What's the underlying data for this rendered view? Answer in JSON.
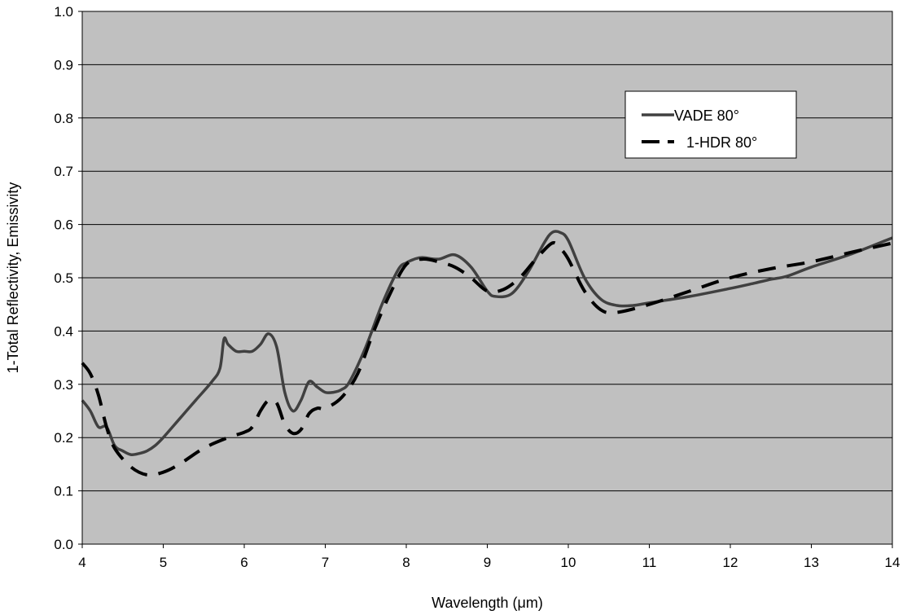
{
  "chart_data": {
    "type": "line",
    "xlabel": "Wavelength (μm)",
    "ylabel": "1-Total Reflectivity, Emissivity",
    "xlim": [
      4,
      14
    ],
    "ylim": [
      0,
      1
    ],
    "x_ticks": [
      "4",
      "5",
      "6",
      "7",
      "8",
      "9",
      "10",
      "11",
      "12",
      "13",
      "14"
    ],
    "y_ticks": [
      "0.0",
      "0.1",
      "0.2",
      "0.3",
      "0.4",
      "0.5",
      "0.6",
      "0.7",
      "0.8",
      "0.9",
      "1.0"
    ],
    "grid": true,
    "legend_position": "top-right",
    "plot_background": "#c0c0c0",
    "series": [
      {
        "name": "VADE 80°",
        "color": "#404040",
        "style": "solid",
        "points": [
          [
            4.0,
            0.27
          ],
          [
            4.1,
            0.25
          ],
          [
            4.2,
            0.22
          ],
          [
            4.3,
            0.22
          ],
          [
            4.4,
            0.185
          ],
          [
            4.5,
            0.175
          ],
          [
            4.6,
            0.168
          ],
          [
            4.7,
            0.17
          ],
          [
            4.8,
            0.175
          ],
          [
            4.9,
            0.185
          ],
          [
            5.0,
            0.2
          ],
          [
            5.2,
            0.235
          ],
          [
            5.4,
            0.27
          ],
          [
            5.6,
            0.305
          ],
          [
            5.7,
            0.33
          ],
          [
            5.75,
            0.385
          ],
          [
            5.8,
            0.375
          ],
          [
            5.9,
            0.362
          ],
          [
            6.0,
            0.362
          ],
          [
            6.1,
            0.362
          ],
          [
            6.2,
            0.375
          ],
          [
            6.3,
            0.395
          ],
          [
            6.4,
            0.37
          ],
          [
            6.5,
            0.285
          ],
          [
            6.6,
            0.25
          ],
          [
            6.7,
            0.27
          ],
          [
            6.8,
            0.305
          ],
          [
            6.9,
            0.295
          ],
          [
            7.0,
            0.285
          ],
          [
            7.1,
            0.285
          ],
          [
            7.2,
            0.29
          ],
          [
            7.3,
            0.305
          ],
          [
            7.5,
            0.37
          ],
          [
            7.7,
            0.45
          ],
          [
            7.9,
            0.515
          ],
          [
            8.0,
            0.528
          ],
          [
            8.1,
            0.535
          ],
          [
            8.2,
            0.538
          ],
          [
            8.4,
            0.535
          ],
          [
            8.6,
            0.543
          ],
          [
            8.8,
            0.52
          ],
          [
            9.0,
            0.475
          ],
          [
            9.1,
            0.465
          ],
          [
            9.3,
            0.47
          ],
          [
            9.5,
            0.51
          ],
          [
            9.7,
            0.565
          ],
          [
            9.8,
            0.585
          ],
          [
            9.9,
            0.585
          ],
          [
            10.0,
            0.57
          ],
          [
            10.2,
            0.5
          ],
          [
            10.4,
            0.46
          ],
          [
            10.6,
            0.448
          ],
          [
            10.8,
            0.448
          ],
          [
            11.0,
            0.453
          ],
          [
            11.5,
            0.465
          ],
          [
            12.0,
            0.48
          ],
          [
            12.3,
            0.49
          ],
          [
            12.5,
            0.497
          ],
          [
            12.7,
            0.503
          ],
          [
            13.0,
            0.52
          ],
          [
            13.5,
            0.545
          ],
          [
            14.0,
            0.575
          ]
        ]
      },
      {
        "name": "1-HDR 80°",
        "color": "#000000",
        "style": "dashed",
        "points": [
          [
            4.0,
            0.34
          ],
          [
            4.1,
            0.32
          ],
          [
            4.2,
            0.28
          ],
          [
            4.3,
            0.22
          ],
          [
            4.4,
            0.18
          ],
          [
            4.6,
            0.145
          ],
          [
            4.8,
            0.13
          ],
          [
            5.0,
            0.135
          ],
          [
            5.2,
            0.15
          ],
          [
            5.5,
            0.18
          ],
          [
            5.8,
            0.2
          ],
          [
            6.0,
            0.21
          ],
          [
            6.1,
            0.22
          ],
          [
            6.2,
            0.25
          ],
          [
            6.3,
            0.27
          ],
          [
            6.4,
            0.265
          ],
          [
            6.5,
            0.225
          ],
          [
            6.6,
            0.208
          ],
          [
            6.7,
            0.215
          ],
          [
            6.8,
            0.245
          ],
          [
            6.9,
            0.255
          ],
          [
            7.0,
            0.255
          ],
          [
            7.2,
            0.275
          ],
          [
            7.4,
            0.32
          ],
          [
            7.6,
            0.4
          ],
          [
            7.8,
            0.47
          ],
          [
            8.0,
            0.525
          ],
          [
            8.2,
            0.535
          ],
          [
            8.4,
            0.53
          ],
          [
            8.6,
            0.52
          ],
          [
            8.8,
            0.5
          ],
          [
            9.0,
            0.475
          ],
          [
            9.2,
            0.478
          ],
          [
            9.4,
            0.5
          ],
          [
            9.6,
            0.535
          ],
          [
            9.8,
            0.565
          ],
          [
            9.9,
            0.555
          ],
          [
            10.0,
            0.535
          ],
          [
            10.2,
            0.475
          ],
          [
            10.4,
            0.44
          ],
          [
            10.6,
            0.435
          ],
          [
            11.0,
            0.45
          ],
          [
            11.5,
            0.475
          ],
          [
            12.0,
            0.5
          ],
          [
            12.5,
            0.517
          ],
          [
            13.0,
            0.53
          ],
          [
            13.5,
            0.548
          ],
          [
            14.0,
            0.565
          ]
        ]
      }
    ]
  }
}
